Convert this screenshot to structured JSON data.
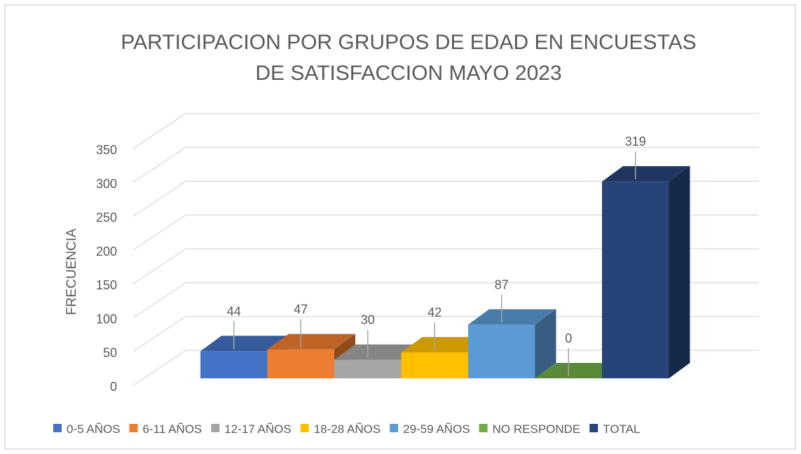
{
  "chart_data": {
    "type": "bar3d",
    "title": [
      "PARTICIPACION POR GRUPOS DE EDAD EN ENCUESTAS",
      "DE SATISFACCION MAYO 2023"
    ],
    "y_label": "FRECUENCIA",
    "series": [
      {
        "name": "0-5 AÑOS",
        "color": "#4472c4",
        "values": [
          44
        ]
      },
      {
        "name": "6-11 AÑOS",
        "color": "#ed7d31",
        "values": [
          47
        ]
      },
      {
        "name": "12-17 AÑOS",
        "color": "#a5a5a5",
        "values": [
          30
        ]
      },
      {
        "name": "18-28 AÑOS",
        "color": "#ffc000",
        "values": [
          42
        ]
      },
      {
        "name": "29-59 AÑOS",
        "color": "#5b9bd5",
        "values": [
          87
        ]
      },
      {
        "name": "NO RESPONDE",
        "color": "#70ad47",
        "values": [
          0
        ]
      },
      {
        "name": "TOTAL",
        "color": "#264478",
        "values": [
          319
        ]
      }
    ],
    "ylim": [
      0,
      350
    ],
    "yticks": [
      0,
      50,
      100,
      150,
      200,
      250,
      300,
      350
    ],
    "grid": true,
    "legend": "bottom"
  }
}
